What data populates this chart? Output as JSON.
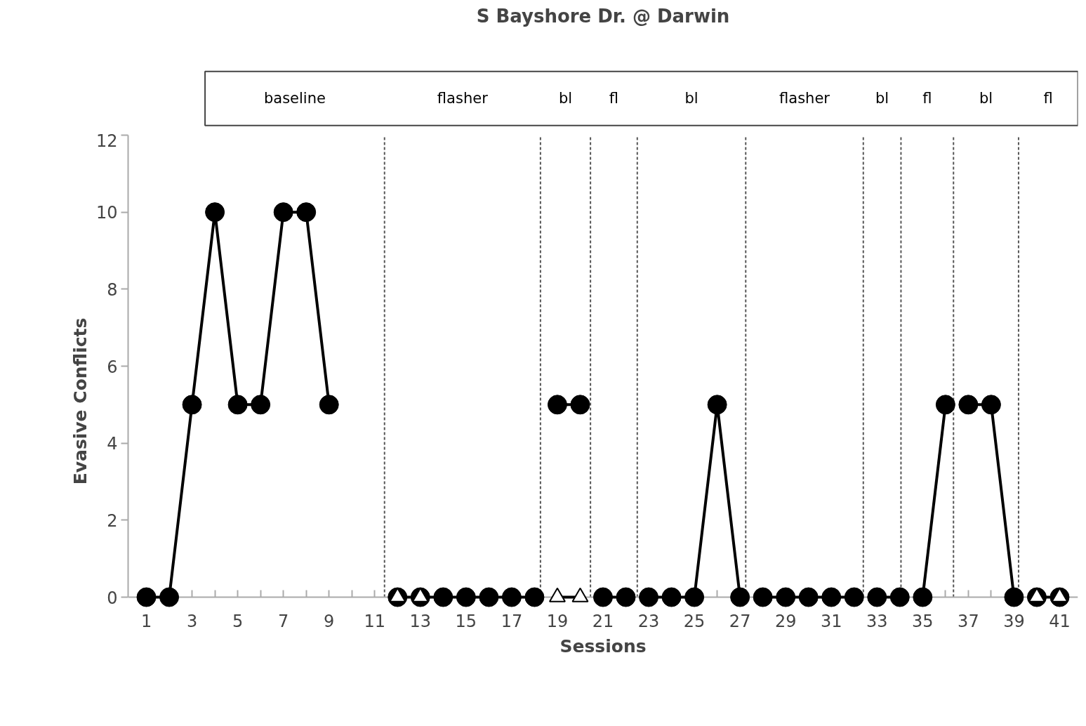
{
  "chart_data": {
    "type": "line",
    "title": "S Bayshore Dr. @ Darwin",
    "xlabel": "Sessions",
    "ylabel": "Evasive Conflicts",
    "xlim": [
      0.2,
      41.8
    ],
    "ylim": [
      0,
      12
    ],
    "yticks": [
      0,
      2,
      4,
      6,
      8,
      10,
      12
    ],
    "xticks": [
      1,
      {
        "value": 2,
        "label": null
      },
      3,
      {
        "value": 4,
        "label": null
      },
      5,
      {
        "value": 6,
        "label": null
      },
      7,
      {
        "value": 8,
        "label": null
      },
      9,
      {
        "value": 10,
        "label": null
      },
      11,
      {
        "value": 12,
        "label": null
      },
      13,
      {
        "value": 14,
        "label": null
      },
      15,
      {
        "value": 16,
        "label": null
      },
      17,
      {
        "value": 18,
        "label": null
      },
      19,
      {
        "value": 20,
        "label": null
      },
      21,
      {
        "value": 22,
        "label": null
      },
      23,
      {
        "value": 24,
        "label": null
      },
      25,
      {
        "value": 26,
        "label": null
      },
      27,
      {
        "value": 28,
        "label": null
      },
      29,
      {
        "value": 30,
        "label": null
      },
      31,
      {
        "value": 32,
        "label": null
      },
      33,
      {
        "value": 34,
        "label": null
      },
      35,
      {
        "value": 36,
        "label": null
      },
      37,
      {
        "value": 38,
        "label": null
      },
      39,
      {
        "value": 40,
        "label": null
      },
      41
    ],
    "grid": false,
    "line_style": "solid",
    "series": [
      {
        "color": "#000000",
        "marker": "circle",
        "x": [
          1,
          2,
          3,
          4,
          5,
          6,
          7,
          8,
          9
        ],
        "values": [
          0,
          0,
          5,
          10,
          5,
          5,
          10,
          10,
          5
        ]
      },
      {
        "color": "#000000",
        "marker": "circle",
        "x": [
          12,
          13,
          14,
          15,
          16,
          17,
          18
        ],
        "values": [
          0,
          0,
          0,
          0,
          0,
          0,
          0
        ]
      },
      {
        "color": "#000000",
        "marker": "circle",
        "x": [
          19,
          20
        ],
        "values": [
          5,
          5
        ]
      },
      {
        "color": "#000000",
        "marker": "circle",
        "x": [
          21,
          22
        ],
        "values": [
          0,
          0
        ]
      },
      {
        "color": "#000000",
        "marker": "circle",
        "x": [
          23,
          24,
          25,
          26,
          27
        ],
        "values": [
          0,
          0,
          0,
          5,
          0
        ]
      },
      {
        "color": "#000000",
        "marker": "circle",
        "x": [
          28,
          29,
          30,
          31,
          32
        ],
        "values": [
          0,
          0,
          0,
          0,
          0
        ]
      },
      {
        "color": "#000000",
        "marker": "circle",
        "x": [
          33,
          34
        ],
        "values": [
          0,
          0
        ]
      },
      {
        "color": "#000000",
        "marker": "circle",
        "x": [
          35,
          36
        ],
        "values": [
          0,
          5
        ]
      },
      {
        "color": "#000000",
        "marker": "circle",
        "x": [
          37,
          38,
          39
        ],
        "values": [
          5,
          5,
          0
        ]
      },
      {
        "color": "#000000",
        "marker": "circle",
        "x": [
          40,
          41
        ],
        "values": [
          0,
          0
        ]
      },
      {
        "type": "scatter",
        "color": "#000000",
        "marker": "triangle",
        "x": [
          12,
          13
        ],
        "values": [
          0,
          0
        ]
      },
      {
        "color": "#000000",
        "marker": "triangle",
        "x": [
          19,
          20
        ],
        "values": [
          0,
          0
        ]
      },
      {
        "type": "scatter",
        "color": "#000000",
        "marker": "triangle",
        "x": [
          40,
          41
        ],
        "values": [
          0,
          0
        ]
      }
    ],
    "ref_lines": [
      {
        "axis": "x",
        "value": 11.43,
        "color": "#555555",
        "line_style": "dashed"
      },
      {
        "axis": "x",
        "value": 18.26,
        "color": "#555555",
        "line_style": "dashed"
      },
      {
        "axis": "x",
        "value": 20.45,
        "color": "#555555",
        "line_style": "dashed"
      },
      {
        "axis": "x",
        "value": 22.5,
        "color": "#555555",
        "line_style": "dashed"
      },
      {
        "axis": "x",
        "value": 27.25,
        "color": "#555555",
        "line_style": "dashed"
      },
      {
        "axis": "x",
        "value": 32.4,
        "color": "#555555",
        "line_style": "dashed"
      },
      {
        "axis": "x",
        "value": 34.05,
        "color": "#555555",
        "line_style": "dashed"
      },
      {
        "axis": "x",
        "value": 36.35,
        "color": "#555555",
        "line_style": "dashed"
      },
      {
        "axis": "x",
        "value": 39.2,
        "color": "#555555",
        "line_style": "dashed"
      }
    ],
    "annotations": [
      "baseline",
      "flasher",
      "bl",
      "fl",
      "bl",
      "flasher",
      "bl",
      "fl",
      "bl",
      "fl"
    ]
  }
}
